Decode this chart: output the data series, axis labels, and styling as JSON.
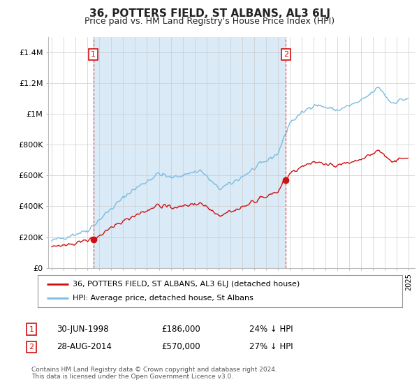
{
  "title": "36, POTTERS FIELD, ST ALBANS, AL3 6LJ",
  "subtitle": "Price paid vs. HM Land Registry's House Price Index (HPI)",
  "y_ticks": [
    0,
    200000,
    400000,
    600000,
    800000,
    1000000,
    1200000,
    1400000
  ],
  "y_tick_labels": [
    "£0",
    "£200K",
    "£400K",
    "£600K",
    "£800K",
    "£1M",
    "£1.2M",
    "£1.4M"
  ],
  "ylim": [
    0,
    1500000
  ],
  "hpi_color": "#7bbde0",
  "hpi_fill_color": "#daeaf7",
  "price_color": "#cc1111",
  "vline_color": "#cc1111",
  "marker1_year": 1998.5,
  "marker1_price": 186000,
  "marker2_year": 2014.67,
  "marker2_price": 570000,
  "legend_label1": "36, POTTERS FIELD, ST ALBANS, AL3 6LJ (detached house)",
  "legend_label2": "HPI: Average price, detached house, St Albans",
  "annot1_label": "1",
  "annot1_date": "30-JUN-1998",
  "annot1_price": "£186,000",
  "annot1_hpi": "24% ↓ HPI",
  "annot2_label": "2",
  "annot2_date": "28-AUG-2014",
  "annot2_price": "£570,000",
  "annot2_hpi": "27% ↓ HPI",
  "footer": "Contains HM Land Registry data © Crown copyright and database right 2024.\nThis data is licensed under the Open Government Licence v3.0.",
  "background_color": "#ffffff",
  "grid_color": "#cccccc"
}
